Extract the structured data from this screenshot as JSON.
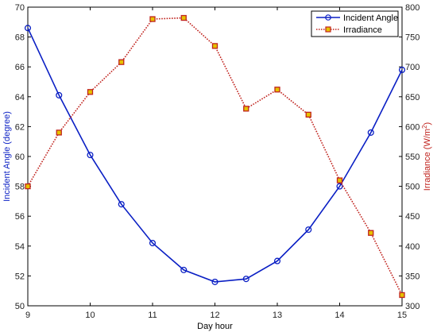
{
  "chart_data": {
    "type": "line",
    "xlabel": "Day hour",
    "x_ticks": [
      9,
      10,
      11,
      12,
      13,
      14,
      15
    ],
    "xlim": [
      9,
      15
    ],
    "grid": false,
    "legend_position": "top-right",
    "left_axis": {
      "label": "Incident Angle (degree)",
      "ylim": [
        50,
        70
      ],
      "ticks": [
        50,
        52,
        54,
        56,
        58,
        60,
        62,
        64,
        66,
        68,
        70
      ],
      "color": "#0a1fc4"
    },
    "right_axis": {
      "label_main": "Irradiance (W/m",
      "label_sup": "2",
      "label_end": ")",
      "ylim": [
        300,
        800
      ],
      "ticks": [
        300,
        350,
        400,
        450,
        500,
        550,
        600,
        650,
        700,
        750,
        800
      ],
      "color": "#c0231e"
    },
    "series": [
      {
        "name": "Incident Angle",
        "axis": "left",
        "color": "#0a1fc4",
        "style": "solid",
        "marker": "circle",
        "x": [
          9,
          9.5,
          10,
          10.5,
          11,
          11.5,
          12,
          12.5,
          13,
          13.5,
          14,
          14.5,
          15
        ],
        "values": [
          68.6,
          64.1,
          60.1,
          56.8,
          54.2,
          52.4,
          51.6,
          51.8,
          53.0,
          55.1,
          58.0,
          61.6,
          65.8
        ]
      },
      {
        "name": "Irradiance",
        "axis": "right",
        "color": "#c0231e",
        "marker_fill": "#e6c200",
        "style": "dotted",
        "marker": "square",
        "x": [
          9,
          9.5,
          10,
          10.5,
          11,
          11.5,
          12,
          12.5,
          13,
          13.5,
          14,
          14.5,
          15
        ],
        "values": [
          500,
          590,
          658,
          708,
          780,
          782,
          735,
          630,
          662,
          620,
          510,
          422,
          318
        ]
      }
    ]
  }
}
